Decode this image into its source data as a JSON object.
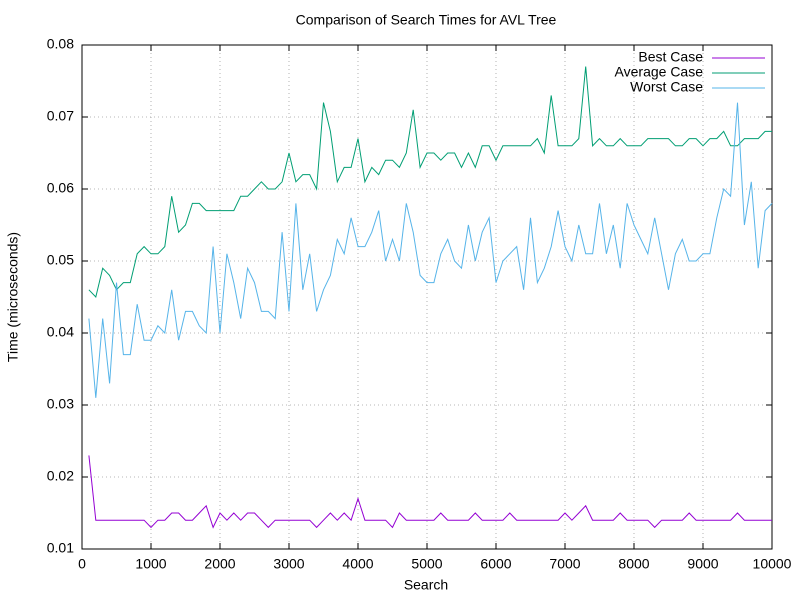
{
  "chart_data": {
    "type": "line",
    "title": "Comparison of Search Times for AVL Tree",
    "x_label": "Search",
    "y_label": "Time (microseconds)",
    "x": [
      100,
      200,
      300,
      400,
      500,
      600,
      700,
      800,
      900,
      1000,
      1100,
      1200,
      1300,
      1400,
      1500,
      1600,
      1700,
      1800,
      1900,
      2000,
      2100,
      2200,
      2300,
      2400,
      2500,
      2600,
      2700,
      2800,
      2900,
      3000,
      3100,
      3200,
      3300,
      3400,
      3500,
      3600,
      3700,
      3800,
      3900,
      4000,
      4100,
      4200,
      4300,
      4400,
      4500,
      4600,
      4700,
      4800,
      4900,
      5000,
      5100,
      5200,
      5300,
      5400,
      5500,
      5600,
      5700,
      5800,
      5900,
      6000,
      6100,
      6200,
      6300,
      6400,
      6500,
      6600,
      6700,
      6800,
      6900,
      7000,
      7100,
      7200,
      7300,
      7400,
      7500,
      7600,
      7700,
      7800,
      7900,
      8000,
      8100,
      8200,
      8300,
      8400,
      8500,
      8600,
      8700,
      8800,
      8900,
      9000,
      9100,
      9200,
      9300,
      9400,
      9500,
      9600,
      9700,
      9800,
      9900,
      10000
    ],
    "series": [
      {
        "name": "Best Case",
        "color": "#9400d3",
        "values": [
          0.023,
          0.014,
          0.014,
          0.014,
          0.014,
          0.014,
          0.014,
          0.014,
          0.014,
          0.013,
          0.014,
          0.014,
          0.015,
          0.015,
          0.014,
          0.014,
          0.015,
          0.016,
          0.013,
          0.015,
          0.014,
          0.015,
          0.014,
          0.015,
          0.015,
          0.014,
          0.013,
          0.014,
          0.014,
          0.014,
          0.014,
          0.014,
          0.014,
          0.013,
          0.014,
          0.015,
          0.014,
          0.015,
          0.014,
          0.017,
          0.014,
          0.014,
          0.014,
          0.014,
          0.013,
          0.015,
          0.014,
          0.014,
          0.014,
          0.014,
          0.014,
          0.015,
          0.014,
          0.014,
          0.014,
          0.014,
          0.015,
          0.014,
          0.014,
          0.014,
          0.014,
          0.015,
          0.014,
          0.014,
          0.014,
          0.014,
          0.014,
          0.014,
          0.014,
          0.015,
          0.014,
          0.015,
          0.016,
          0.014,
          0.014,
          0.014,
          0.014,
          0.015,
          0.014,
          0.014,
          0.014,
          0.014,
          0.013,
          0.014,
          0.014,
          0.014,
          0.014,
          0.015,
          0.014,
          0.014,
          0.014,
          0.014,
          0.014,
          0.014,
          0.015,
          0.014,
          0.014,
          0.014,
          0.014,
          0.014
        ]
      },
      {
        "name": "Average Case",
        "color": "#009e73",
        "values": [
          0.046,
          0.045,
          0.049,
          0.048,
          0.046,
          0.047,
          0.047,
          0.051,
          0.052,
          0.051,
          0.051,
          0.052,
          0.059,
          0.054,
          0.055,
          0.058,
          0.058,
          0.057,
          0.057,
          0.057,
          0.057,
          0.057,
          0.059,
          0.059,
          0.06,
          0.061,
          0.06,
          0.06,
          0.061,
          0.065,
          0.061,
          0.062,
          0.062,
          0.06,
          0.072,
          0.068,
          0.061,
          0.063,
          0.063,
          0.067,
          0.061,
          0.063,
          0.062,
          0.064,
          0.064,
          0.063,
          0.065,
          0.071,
          0.063,
          0.065,
          0.065,
          0.064,
          0.065,
          0.065,
          0.063,
          0.065,
          0.063,
          0.066,
          0.066,
          0.064,
          0.066,
          0.066,
          0.066,
          0.066,
          0.066,
          0.067,
          0.065,
          0.073,
          0.066,
          0.066,
          0.066,
          0.067,
          0.077,
          0.066,
          0.067,
          0.066,
          0.066,
          0.067,
          0.066,
          0.066,
          0.066,
          0.067,
          0.067,
          0.067,
          0.067,
          0.066,
          0.066,
          0.067,
          0.067,
          0.066,
          0.067,
          0.067,
          0.068,
          0.066,
          0.066,
          0.067,
          0.067,
          0.067,
          0.068,
          0.068
        ]
      },
      {
        "name": "Worst Case",
        "color": "#56b4e9",
        "values": [
          0.042,
          0.031,
          0.042,
          0.033,
          0.047,
          0.037,
          0.037,
          0.044,
          0.039,
          0.039,
          0.041,
          0.04,
          0.046,
          0.039,
          0.043,
          0.043,
          0.041,
          0.04,
          0.052,
          0.04,
          0.051,
          0.047,
          0.042,
          0.049,
          0.047,
          0.043,
          0.043,
          0.042,
          0.054,
          0.043,
          0.058,
          0.046,
          0.051,
          0.043,
          0.046,
          0.048,
          0.053,
          0.051,
          0.056,
          0.052,
          0.052,
          0.054,
          0.057,
          0.05,
          0.053,
          0.05,
          0.058,
          0.054,
          0.048,
          0.047,
          0.047,
          0.051,
          0.053,
          0.05,
          0.049,
          0.055,
          0.05,
          0.054,
          0.056,
          0.047,
          0.05,
          0.051,
          0.052,
          0.046,
          0.056,
          0.047,
          0.049,
          0.052,
          0.057,
          0.052,
          0.05,
          0.055,
          0.051,
          0.051,
          0.058,
          0.051,
          0.055,
          0.049,
          0.058,
          0.055,
          0.053,
          0.051,
          0.056,
          0.051,
          0.046,
          0.051,
          0.053,
          0.05,
          0.05,
          0.051,
          0.051,
          0.056,
          0.06,
          0.059,
          0.072,
          0.055,
          0.061,
          0.049,
          0.057,
          0.058
        ]
      }
    ],
    "xlim": [
      0,
      10000
    ],
    "xticks": [
      0,
      1000,
      2000,
      3000,
      4000,
      5000,
      6000,
      7000,
      8000,
      9000,
      10000
    ],
    "ylim": [
      0.01,
      0.08
    ],
    "yticks": [
      0.01,
      0.02,
      0.03,
      0.04,
      0.05,
      0.06,
      0.07,
      0.08
    ],
    "grid": true,
    "legend": "top-right"
  }
}
